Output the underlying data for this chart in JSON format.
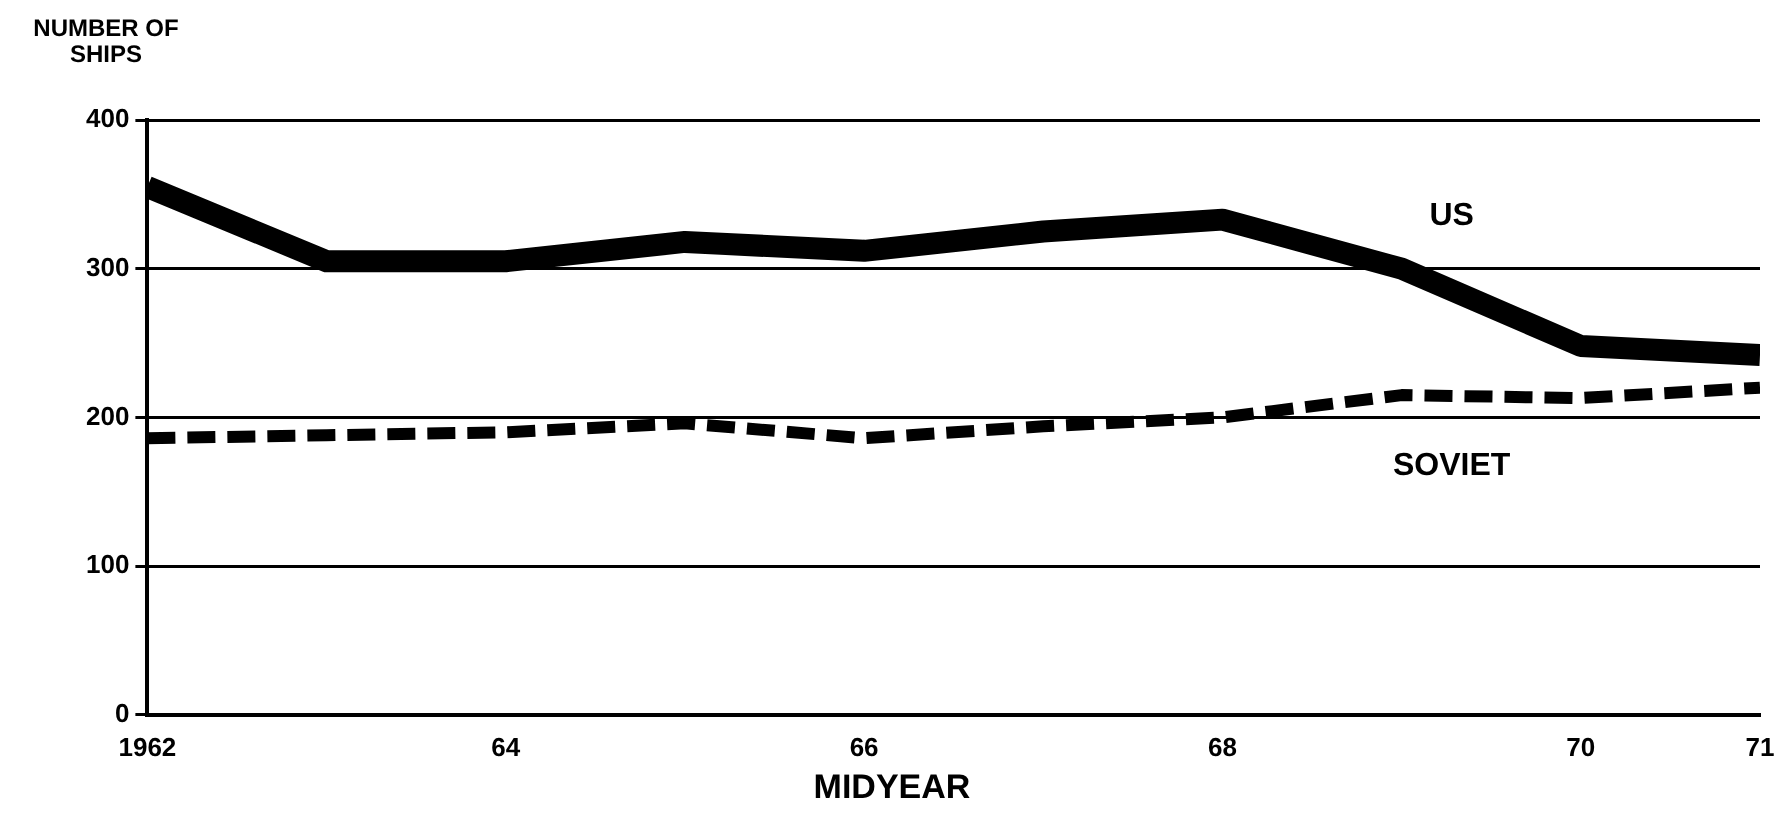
{
  "chart_data": {
    "type": "line",
    "ylabel": "NUMBER OF SHIPS",
    "xlabel": "MIDYEAR",
    "x": [
      1962,
      1963,
      1964,
      1965,
      1966,
      1967,
      1968,
      1969,
      1970,
      1971
    ],
    "xlim": [
      1962,
      1971
    ],
    "xticks": [
      {
        "value": 1962,
        "label": "1962"
      },
      {
        "value": 1964,
        "label": "64"
      },
      {
        "value": 1966,
        "label": "66"
      },
      {
        "value": 1968,
        "label": "68"
      },
      {
        "value": 1970,
        "label": "70"
      },
      {
        "value": 1971,
        "label": "71"
      }
    ],
    "ylim": [
      0,
      400
    ],
    "yticks": [
      0,
      100,
      200,
      300,
      400
    ],
    "grid": "y",
    "legend": false,
    "marker": "none",
    "series": [
      {
        "name": "US",
        "color": "#000000",
        "line_style": "solid",
        "values": [
          355,
          305,
          305,
          318,
          312,
          325,
          333,
          300,
          248,
          242
        ]
      },
      {
        "name": "SOVIET",
        "color": "#000000",
        "line_style": "dashed",
        "values": [
          186,
          188,
          190,
          196,
          186,
          194,
          200,
          215,
          213,
          220
        ]
      }
    ]
  }
}
